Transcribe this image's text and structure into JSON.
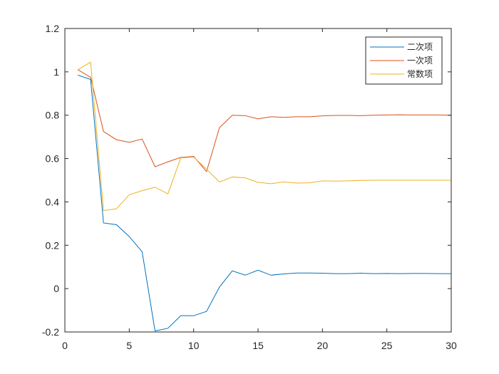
{
  "chart_data": {
    "type": "line",
    "title": "",
    "xlabel": "",
    "ylabel": "",
    "xlim": [
      0,
      30
    ],
    "ylim": [
      -0.2,
      1.2
    ],
    "xticks": [
      0,
      5,
      10,
      15,
      20,
      25,
      30
    ],
    "xtick_labels": [
      "0",
      "5",
      "10",
      "15",
      "20",
      "25",
      "30"
    ],
    "yticks": [
      -0.2,
      0,
      0.2,
      0.4,
      0.6,
      0.8,
      1.0,
      1.2
    ],
    "ytick_labels": [
      "-0.2",
      "0",
      "0.2",
      "0.4",
      "0.6",
      "0.8",
      "1",
      "1.2"
    ],
    "grid": false,
    "legend_position": "top-right",
    "x": [
      1,
      2,
      3,
      4,
      5,
      6,
      7,
      8,
      9,
      10,
      11,
      12,
      13,
      14,
      15,
      16,
      17,
      18,
      19,
      20,
      21,
      22,
      23,
      24,
      25,
      26,
      27,
      28,
      29,
      30
    ],
    "series": [
      {
        "name": "二次项",
        "color": "#0072BD",
        "values": [
          0.985,
          0.965,
          0.303,
          0.295,
          0.24,
          0.17,
          -0.195,
          -0.183,
          -0.125,
          -0.125,
          -0.105,
          0.007,
          0.082,
          0.062,
          0.085,
          0.062,
          0.068,
          0.072,
          0.072,
          0.071,
          0.069,
          0.069,
          0.071,
          0.069,
          0.07,
          0.069,
          0.07,
          0.07,
          0.069,
          0.069
        ]
      },
      {
        "name": "一次项",
        "color": "#D95319",
        "values": [
          1.01,
          0.975,
          0.725,
          0.687,
          0.675,
          0.69,
          0.562,
          0.585,
          0.605,
          0.61,
          0.54,
          0.742,
          0.8,
          0.798,
          0.783,
          0.793,
          0.79,
          0.793,
          0.793,
          0.797,
          0.799,
          0.799,
          0.798,
          0.8,
          0.801,
          0.802,
          0.801,
          0.801,
          0.801,
          0.8
        ]
      },
      {
        "name": "常数项",
        "color": "#EDB120",
        "values": [
          1.01,
          1.045,
          0.36,
          0.368,
          0.433,
          0.452,
          0.468,
          0.437,
          0.603,
          0.607,
          0.551,
          0.492,
          0.515,
          0.511,
          0.49,
          0.484,
          0.492,
          0.487,
          0.488,
          0.497,
          0.496,
          0.497,
          0.499,
          0.5,
          0.5,
          0.5,
          0.5,
          0.5,
          0.5,
          0.5
        ]
      }
    ]
  }
}
